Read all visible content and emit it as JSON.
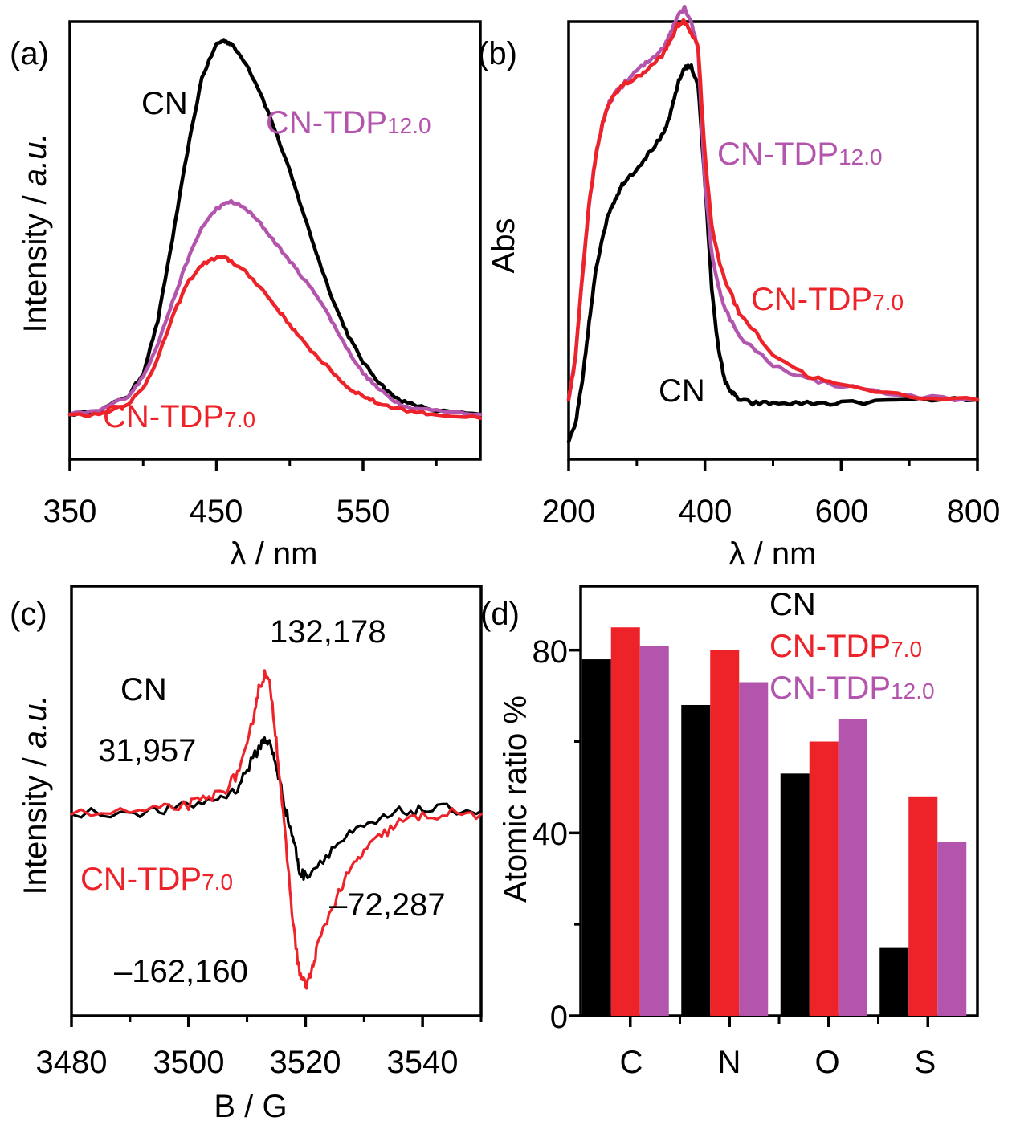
{
  "colors": {
    "cn": "#000000",
    "tdp7": "#ee2229",
    "tdp12": "#b455ad"
  },
  "chart_data": [
    {
      "panel": "(a)",
      "type": "line",
      "title": "",
      "xlabel": "λ / nm",
      "ylabel_main": "Intensity / ",
      "ylabel_italic": "a.u.",
      "xlim": [
        350,
        630
      ],
      "ylim": [
        -0.12,
        1.05
      ],
      "xticks": [
        350,
        450,
        550
      ],
      "xticks_minor": [
        400,
        500,
        600
      ],
      "series": [
        {
          "name": "CN",
          "color": "#000000",
          "x": [
            350,
            370,
            390,
            400,
            410,
            420,
            430,
            440,
            450,
            455,
            460,
            470,
            480,
            490,
            500,
            510,
            520,
            530,
            540,
            550,
            560,
            570,
            580,
            600,
            630
          ],
          "y": [
            0.0,
            0.01,
            0.05,
            0.11,
            0.25,
            0.47,
            0.7,
            0.9,
            0.99,
            1.0,
            0.99,
            0.94,
            0.86,
            0.76,
            0.65,
            0.53,
            0.41,
            0.3,
            0.21,
            0.14,
            0.09,
            0.05,
            0.03,
            0.01,
            0.0
          ]
        },
        {
          "name": "CN-TDP12.0",
          "color": "#b455ad",
          "x": [
            350,
            370,
            390,
            400,
            410,
            420,
            430,
            440,
            450,
            460,
            470,
            480,
            490,
            500,
            510,
            520,
            530,
            540,
            550,
            560,
            570,
            580,
            600,
            630
          ],
          "y": [
            0.0,
            0.01,
            0.05,
            0.1,
            0.19,
            0.3,
            0.41,
            0.5,
            0.55,
            0.57,
            0.55,
            0.51,
            0.46,
            0.41,
            0.36,
            0.31,
            0.24,
            0.17,
            0.11,
            0.07,
            0.04,
            0.02,
            0.01,
            0.0
          ]
        },
        {
          "name": "CN-TDP7.0",
          "color": "#ee2229",
          "x": [
            350,
            370,
            390,
            400,
            410,
            420,
            430,
            440,
            450,
            455,
            460,
            470,
            480,
            490,
            500,
            510,
            520,
            530,
            540,
            550,
            560,
            580,
            600,
            630
          ],
          "y": [
            0.0,
            0.0,
            0.03,
            0.07,
            0.15,
            0.26,
            0.35,
            0.4,
            0.42,
            0.42,
            0.41,
            0.38,
            0.34,
            0.29,
            0.24,
            0.19,
            0.15,
            0.11,
            0.07,
            0.05,
            0.03,
            0.01,
            0.0,
            -0.01
          ]
        }
      ],
      "annotations": [
        {
          "text": "CN",
          "sub": "",
          "color": "#000000"
        },
        {
          "text": "CN-TDP",
          "sub": "12.0",
          "color": "#b455ad"
        },
        {
          "text": "CN-TDP",
          "sub": "7.0",
          "color": "#ee2229"
        }
      ]
    },
    {
      "panel": "(b)",
      "type": "line",
      "title": "",
      "xlabel": "λ / nm",
      "ylabel": "Abs",
      "xlim": [
        200,
        800
      ],
      "ylim": [
        -0.17,
        1.08
      ],
      "xticks": [
        200,
        400,
        600,
        800
      ],
      "xticks_minor": [
        300,
        500,
        700
      ],
      "series": [
        {
          "name": "CN",
          "color": "#000000",
          "x": [
            200,
            210,
            220,
            230,
            240,
            250,
            260,
            270,
            280,
            300,
            320,
            340,
            350,
            360,
            370,
            380,
            390,
            400,
            410,
            420,
            430,
            440,
            450,
            470,
            500,
            550,
            600,
            700,
            800
          ],
          "y": [
            -0.12,
            -0.07,
            0.05,
            0.22,
            0.37,
            0.47,
            0.54,
            0.58,
            0.62,
            0.66,
            0.71,
            0.76,
            0.82,
            0.9,
            0.95,
            0.95,
            0.9,
            0.62,
            0.32,
            0.14,
            0.05,
            0.02,
            0.0,
            -0.01,
            -0.01,
            -0.01,
            -0.01,
            0.0,
            0.0
          ]
        },
        {
          "name": "CN-TDP12.0",
          "color": "#b455ad",
          "x": [
            200,
            210,
            220,
            230,
            240,
            250,
            260,
            270,
            280,
            300,
            320,
            340,
            350,
            360,
            370,
            380,
            390,
            400,
            410,
            420,
            430,
            450,
            500,
            550,
            600,
            700,
            800
          ],
          "y": [
            0.0,
            0.12,
            0.35,
            0.56,
            0.7,
            0.79,
            0.85,
            0.88,
            0.9,
            0.94,
            0.97,
            1.01,
            1.05,
            1.1,
            1.12,
            1.08,
            1.0,
            0.62,
            0.42,
            0.32,
            0.26,
            0.18,
            0.1,
            0.06,
            0.04,
            0.01,
            0.0
          ]
        },
        {
          "name": "CN-TDP7.0",
          "color": "#ee2229",
          "x": [
            200,
            210,
            220,
            230,
            240,
            250,
            260,
            270,
            280,
            300,
            320,
            340,
            350,
            360,
            370,
            380,
            390,
            400,
            410,
            420,
            430,
            450,
            500,
            550,
            600,
            700,
            800
          ],
          "y": [
            0.0,
            0.12,
            0.35,
            0.56,
            0.7,
            0.79,
            0.85,
            0.88,
            0.9,
            0.92,
            0.95,
            0.99,
            1.03,
            1.07,
            1.08,
            1.05,
            1.01,
            0.7,
            0.5,
            0.4,
            0.34,
            0.25,
            0.13,
            0.07,
            0.04,
            0.01,
            0.0
          ]
        }
      ],
      "annotations": [
        {
          "text": "CN-TDP",
          "sub": "12.0",
          "color": "#b455ad"
        },
        {
          "text": "CN-TDP",
          "sub": "7.0",
          "color": "#ee2229"
        },
        {
          "text": "CN",
          "sub": "",
          "color": "#000000"
        }
      ]
    },
    {
      "panel": "(c)",
      "type": "line",
      "title": "",
      "xlabel": "B / G",
      "ylabel_main": "Intensity / ",
      "ylabel_italic": "a.u.",
      "xlim": [
        3480,
        3550
      ],
      "ylim": [
        -190000,
        215000
      ],
      "xticks": [
        3480,
        3500,
        3520,
        3540
      ],
      "xticks_minor": [
        3490,
        3510,
        3530,
        3550
      ],
      "series": [
        {
          "name": "CN",
          "color": "#000000",
          "x": [
            3480,
            3490,
            3495,
            3500,
            3505,
            3508,
            3510,
            3512,
            3513,
            3514,
            3515,
            3516,
            3517,
            3518,
            3519,
            3520,
            3522,
            3525,
            3528,
            3532,
            3536,
            3540,
            3545,
            3550
          ],
          "y": [
            0,
            2000,
            3000,
            8000,
            15000,
            22000,
            42000,
            62000,
            72000,
            65000,
            45000,
            20000,
            -5000,
            -25000,
            -55000,
            -58000,
            -48000,
            -30000,
            -18000,
            -8000,
            2000,
            4000,
            5000,
            3000
          ]
        },
        {
          "name": "CN-TDP7.0",
          "color": "#ee2229",
          "x": [
            3480,
            3490,
            3495,
            3500,
            3503,
            3506,
            3508,
            3510,
            3511,
            3512,
            3513,
            3514,
            3515,
            3516,
            3517,
            3518,
            3519,
            3520,
            3521,
            3522,
            3524,
            3526,
            3528,
            3530,
            3533,
            3536,
            3540,
            3545,
            3550
          ],
          "y": [
            0,
            2000,
            4000,
            9000,
            14000,
            22000,
            35000,
            62000,
            90000,
            118000,
            132000,
            120000,
            70000,
            10000,
            -50000,
            -110000,
            -150000,
            -162000,
            -150000,
            -125000,
            -95000,
            -70000,
            -50000,
            -35000,
            -20000,
            -8000,
            -2000,
            1000,
            0
          ]
        }
      ],
      "annotations": [
        {
          "text": "132,178",
          "color": "#000000"
        },
        {
          "text": "CN",
          "color": "#000000"
        },
        {
          "text": "31,957",
          "color": "#000000"
        },
        {
          "text": "CN-TDP",
          "sub": "7.0",
          "color": "#ee2229"
        },
        {
          "text": "–72,287",
          "color": "#000000"
        },
        {
          "text": "–162,160",
          "color": "#000000"
        }
      ]
    },
    {
      "panel": "(d)",
      "type": "bar",
      "title": "",
      "xlabel": "",
      "ylabel": "Atomic ratio %",
      "categories": [
        "C",
        "N",
        "O",
        "S"
      ],
      "ylim": [
        0,
        94
      ],
      "yticks": [
        0,
        40,
        80
      ],
      "yticks_minor": [
        20,
        60
      ],
      "series": [
        {
          "name": "CN",
          "color": "#000000",
          "values": [
            78,
            68,
            53,
            15
          ]
        },
        {
          "name": "CN-TDP7.0",
          "color": "#ee2229",
          "values": [
            85,
            80,
            60,
            48
          ]
        },
        {
          "name": "CN-TDP12.0",
          "color": "#b455ad",
          "values": [
            81,
            73,
            65,
            38
          ]
        }
      ],
      "legend": [
        {
          "text": "CN",
          "sub": "",
          "color": "#000000"
        },
        {
          "text": "CN-TDP",
          "sub": "7.0",
          "color": "#ee2229"
        },
        {
          "text": "CN-TDP",
          "sub": "12.0",
          "color": "#b455ad"
        }
      ]
    }
  ]
}
